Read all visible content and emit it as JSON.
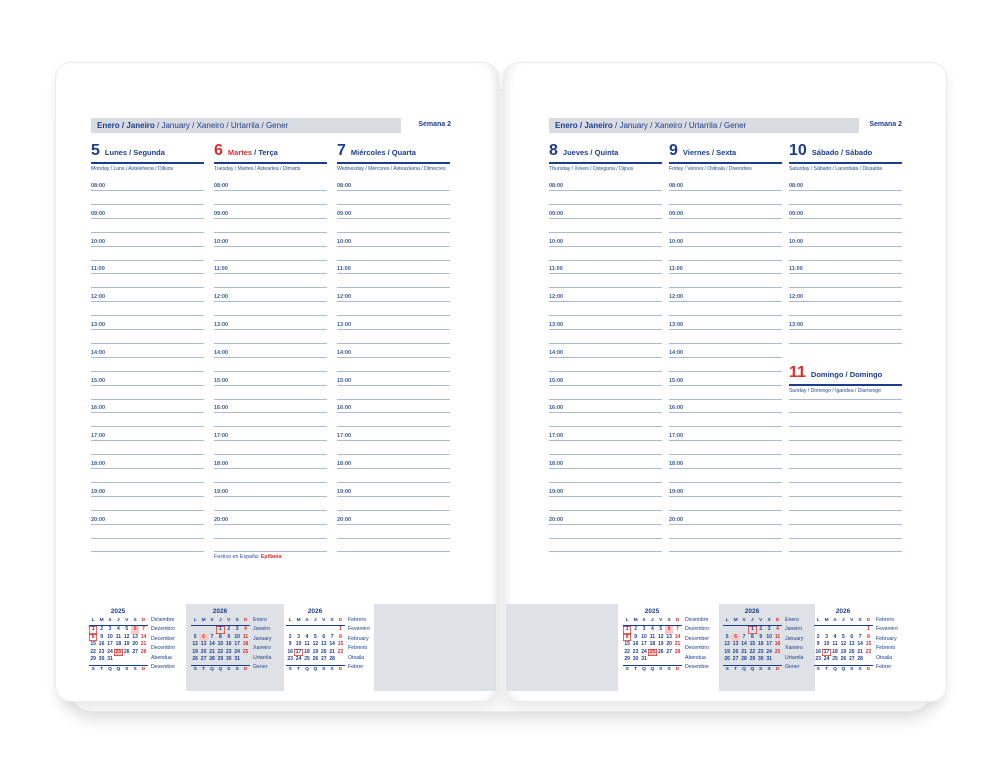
{
  "colors": {
    "navy": "#1b3e8c",
    "red": "#d73030",
    "rule_line": "#a9bad2",
    "month_bar_bg": "#d9dce0",
    "gray_block_bg": "#dee2e7",
    "holiday_pink": "#f6caca"
  },
  "sep": " / ",
  "month_bar": {
    "bold": "Enero / Janeiro",
    "rest": " / January / Xaneiro / Urtarrila / Gener"
  },
  "week_label": "Semana 2",
  "times": [
    "08:00",
    "09:00",
    "10:00",
    "11:00",
    "12:00",
    "13:00",
    "14:00",
    "15:00",
    "16:00",
    "17:00",
    "18:00",
    "19:00",
    "20:00"
  ],
  "left_page": {
    "days": [
      {
        "num": "5",
        "name_es": "Lunes",
        "name_pt": "Segunda",
        "subtitle": "Monday / Luns / Astelehena / Dilluns"
      },
      {
        "num": "6",
        "name_es": "Martes",
        "name_pt": "Terça",
        "subtitle": "Tuesday / Martes / Asteartea / Dimarts"
      },
      {
        "num": "7",
        "name_es": "Miércoles",
        "name_pt": "Quarta",
        "subtitle": "Wednesday / Mércores / Asteazkena / Dimecres"
      }
    ],
    "holiday_note": {
      "prefix": "Festivo en España: ",
      "holiday": "Epifanía"
    }
  },
  "right_page": {
    "days": [
      {
        "num": "8",
        "name_es": "Jueves",
        "name_pt": "Quinta",
        "subtitle": "Thursday / Xoves / Osteguna / Dijous"
      },
      {
        "num": "9",
        "name_es": "Viernes",
        "name_pt": "Sexta",
        "subtitle": "Friday / Venres / Ostirala / Divendres"
      },
      {
        "num": "10",
        "name_es": "Sábado",
        "name_pt": "Sábado",
        "subtitle": "Saturday / Sábado / Larunbata / Dissabte"
      }
    ],
    "sunday": {
      "num": "11",
      "name_es": "Domingo",
      "name_pt": "Domingo",
      "subtitle": "Sunday / Domingo / Igandea / Diumenge"
    }
  },
  "calendars": [
    {
      "year": "2025",
      "day_header": [
        "L",
        "M",
        "X",
        "J",
        "V",
        "S",
        "D"
      ],
      "footer": [
        "S",
        "T",
        "Q",
        "Q",
        "S",
        "S",
        "D"
      ],
      "month_names": [
        "Diciembre",
        "Dezembro",
        "December",
        "Decembro",
        "Abendua",
        "Desembre"
      ],
      "weeks": [
        [
          "1",
          "2",
          "3",
          "4",
          "5",
          "6",
          "7"
        ],
        [
          "8",
          "9",
          "10",
          "11",
          "12",
          "13",
          "14"
        ],
        [
          "15",
          "16",
          "17",
          "18",
          "19",
          "20",
          "21"
        ],
        [
          "22",
          "23",
          "24",
          "25",
          "26",
          "27",
          "28"
        ],
        [
          "29",
          "30",
          "31",
          "",
          "",
          "",
          ""
        ]
      ],
      "red": [
        "6",
        "7",
        "8",
        "14",
        "21",
        "25",
        "28"
      ],
      "boxed": [
        "1",
        "8",
        "25"
      ],
      "pink": [
        "6",
        "25"
      ]
    },
    {
      "year": "2026",
      "day_header": [
        "L",
        "M",
        "X",
        "J",
        "V",
        "S",
        "D"
      ],
      "footer": [
        "S",
        "T",
        "Q",
        "Q",
        "S",
        "S",
        "D"
      ],
      "month_names": [
        "Enero",
        "Janeiro",
        "January",
        "Xaneiro",
        "Urtarrila",
        "Gener"
      ],
      "weeks": [
        [
          "",
          "",
          "",
          "1",
          "2",
          "3",
          "4"
        ],
        [
          "5",
          "6",
          "7",
          "8",
          "9",
          "10",
          "11"
        ],
        [
          "12",
          "13",
          "14",
          "15",
          "16",
          "17",
          "18"
        ],
        [
          "19",
          "20",
          "21",
          "22",
          "23",
          "24",
          "25"
        ],
        [
          "26",
          "27",
          "28",
          "29",
          "30",
          "31",
          ""
        ]
      ],
      "red": [
        "4",
        "6",
        "11",
        "18",
        "25"
      ],
      "boxed": [
        "1"
      ],
      "pink": [
        "6"
      ]
    },
    {
      "year": "2026",
      "day_header": [
        "L",
        "M",
        "X",
        "J",
        "V",
        "S",
        "D"
      ],
      "footer": [
        "S",
        "T",
        "Q",
        "Q",
        "S",
        "S",
        "D"
      ],
      "month_names": [
        "Febrero",
        "Fevereiro",
        "February",
        "Febreiro",
        "Otsaila",
        "Febrer"
      ],
      "weeks": [
        [
          "",
          "",
          "",
          "",
          "",
          "",
          "1"
        ],
        [
          "2",
          "3",
          "4",
          "5",
          "6",
          "7",
          "8"
        ],
        [
          "9",
          "10",
          "11",
          "12",
          "13",
          "14",
          "15"
        ],
        [
          "16",
          "17",
          "18",
          "19",
          "20",
          "21",
          "22"
        ],
        [
          "23",
          "24",
          "25",
          "26",
          "27",
          "28",
          ""
        ]
      ],
      "red": [
        "1",
        "8",
        "15",
        "22"
      ],
      "boxed": [
        "17"
      ],
      "pink": []
    }
  ]
}
